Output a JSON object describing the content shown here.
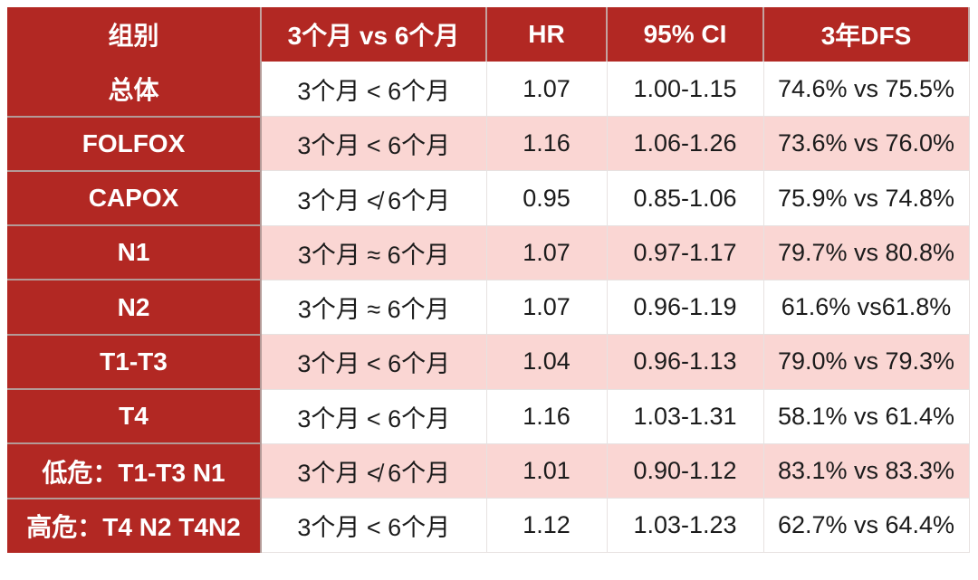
{
  "chart_data": {
    "type": "table",
    "columns": [
      {
        "key": "group",
        "label": "组别"
      },
      {
        "key": "comparison",
        "label": "3个月 vs 6个月"
      },
      {
        "key": "hr",
        "label": "HR"
      },
      {
        "key": "ci",
        "label": "95% CI"
      },
      {
        "key": "dfs",
        "label": "3年DFS"
      }
    ],
    "rows": [
      {
        "group": "总体",
        "comparison": "3个月 < 6个月",
        "hr": "1.07",
        "ci": "1.00-1.15",
        "dfs": "74.6% vs 75.5%"
      },
      {
        "group": "FOLFOX",
        "comparison": "3个月 < 6个月",
        "hr": "1.16",
        "ci": "1.06-1.26",
        "dfs": "73.6% vs 76.0%"
      },
      {
        "group": "CAPOX",
        "comparison": "3个月 ≮ 6个月",
        "hr": "0.95",
        "ci": "0.85-1.06",
        "dfs": "75.9% vs 74.8%"
      },
      {
        "group": "N1",
        "comparison": "3个月 ≈ 6个月",
        "hr": "1.07",
        "ci": "0.97-1.17",
        "dfs": "79.7% vs 80.8%"
      },
      {
        "group": "N2",
        "comparison": "3个月 ≈ 6个月",
        "hr": "1.07",
        "ci": "0.96-1.19",
        "dfs": "61.6% vs61.8%"
      },
      {
        "group": "T1-T3",
        "comparison": "3个月 < 6个月",
        "hr": "1.04",
        "ci": "0.96-1.13",
        "dfs": "79.0% vs 79.3%"
      },
      {
        "group": "T4",
        "comparison": "3个月 < 6个月",
        "hr": "1.16",
        "ci": "1.03-1.31",
        "dfs": "58.1% vs 61.4%"
      },
      {
        "group": "低危：T1-T3 N1",
        "comparison": "3个月 ≮ 6个月",
        "hr": "1.01",
        "ci": "0.90-1.12",
        "dfs": "83.1% vs 83.3%"
      },
      {
        "group": "高危：T4 N2 T4N2",
        "comparison": "3个月 < 6个月",
        "hr": "1.12",
        "ci": "1.03-1.23",
        "dfs": "62.7% vs 64.4%"
      }
    ]
  },
  "colors": {
    "header_red": "#B22823",
    "row_pink": "#FAD6D3",
    "row_white": "#FFFFFF",
    "header_text": "#FFFFFF",
    "data_text": "#1B1B1B"
  }
}
